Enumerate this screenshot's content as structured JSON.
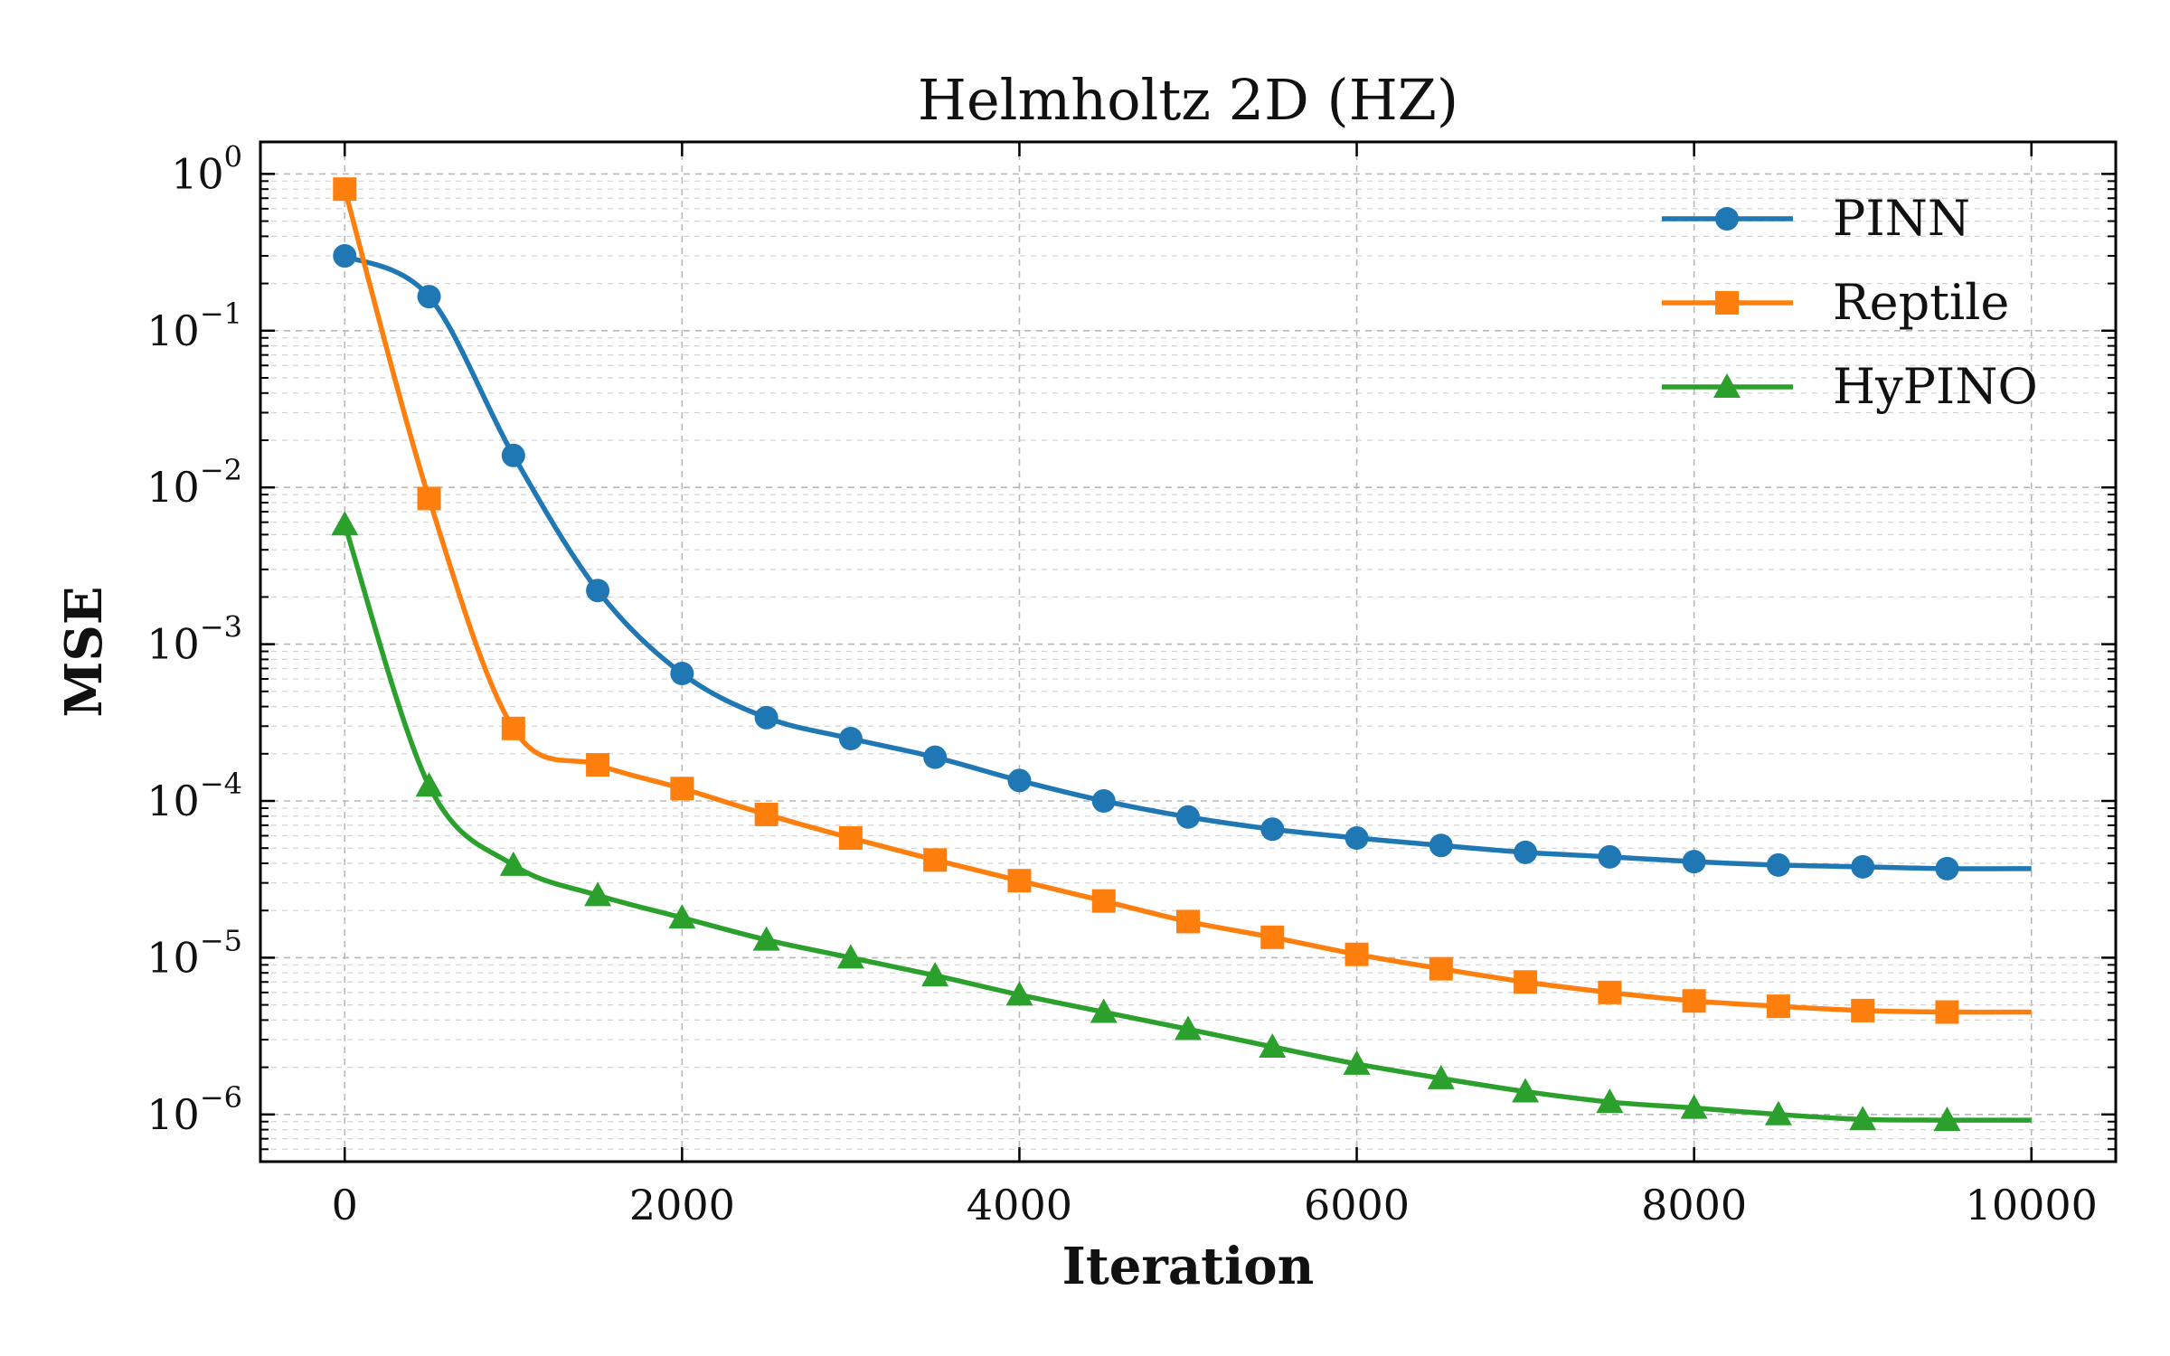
{
  "chart_data": {
    "type": "line",
    "title": "Helmholtz 2D (HZ)",
    "xlabel": "Iteration",
    "ylabel": "MSE",
    "xlim": [
      -500,
      10500
    ],
    "ylim": [
      5e-07,
      1.6
    ],
    "yscale": "log",
    "x_ticks": [
      0,
      2000,
      4000,
      6000,
      8000,
      10000
    ],
    "x_tick_labels": [
      "0",
      "2000",
      "4000",
      "6000",
      "8000",
      "10000"
    ],
    "y_ticks": [
      1e-06,
      1e-05,
      0.0001,
      0.001,
      0.01,
      0.1,
      1
    ],
    "y_tick_labels": [
      {
        "base": "10",
        "exp": "−6"
      },
      {
        "base": "10",
        "exp": "−5"
      },
      {
        "base": "10",
        "exp": "−4"
      },
      {
        "base": "10",
        "exp": "−3"
      },
      {
        "base": "10",
        "exp": "−2"
      },
      {
        "base": "10",
        "exp": "−1"
      },
      {
        "base": "10",
        "exp": "0"
      }
    ],
    "grid": true,
    "legend_position": "top-right",
    "series": [
      {
        "name": "PINN",
        "color": "#1f77b4",
        "marker": "circle",
        "x": [
          0,
          500,
          1000,
          1500,
          2000,
          2500,
          3000,
          3500,
          4000,
          4500,
          5000,
          5500,
          6000,
          6500,
          7000,
          7500,
          8000,
          8500,
          9000,
          9500
        ],
        "y": [
          0.3,
          0.165,
          0.016,
          0.0022,
          0.00065,
          0.00034,
          0.00025,
          0.00019,
          0.000135,
          0.0001,
          7.9e-05,
          6.6e-05,
          5.8e-05,
          5.2e-05,
          4.7e-05,
          4.4e-05,
          4.1e-05,
          3.9e-05,
          3.8e-05,
          3.7e-05
        ]
      },
      {
        "name": "Reptile",
        "color": "#ff7f0e",
        "marker": "square",
        "x": [
          0,
          500,
          1000,
          1500,
          2000,
          2500,
          3000,
          3500,
          4000,
          4500,
          5000,
          5500,
          6000,
          6500,
          7000,
          7500,
          8000,
          8500,
          9000,
          9500
        ],
        "y": [
          0.8,
          0.0085,
          0.00029,
          0.00017,
          0.00012,
          8.2e-05,
          5.8e-05,
          4.2e-05,
          3.1e-05,
          2.3e-05,
          1.7e-05,
          1.35e-05,
          1.05e-05,
          8.5e-06,
          7e-06,
          6e-06,
          5.3e-06,
          4.9e-06,
          4.6e-06,
          4.5e-06
        ]
      },
      {
        "name": "HyPINO",
        "color": "#2ca02c",
        "marker": "triangle",
        "x": [
          0,
          500,
          1000,
          1500,
          2000,
          2500,
          3000,
          3500,
          4000,
          4500,
          5000,
          5500,
          6000,
          6500,
          7000,
          7500,
          8000,
          8500,
          9000,
          9500
        ],
        "y": [
          0.0058,
          0.000125,
          3.9e-05,
          2.5e-05,
          1.8e-05,
          1.3e-05,
          1e-05,
          7.7e-06,
          5.8e-06,
          4.5e-06,
          3.5e-06,
          2.7e-06,
          2.1e-06,
          1.7e-06,
          1.4e-06,
          1.2e-06,
          1.1e-06,
          1e-06,
          9.3e-07,
          9.2e-07
        ]
      }
    ]
  }
}
